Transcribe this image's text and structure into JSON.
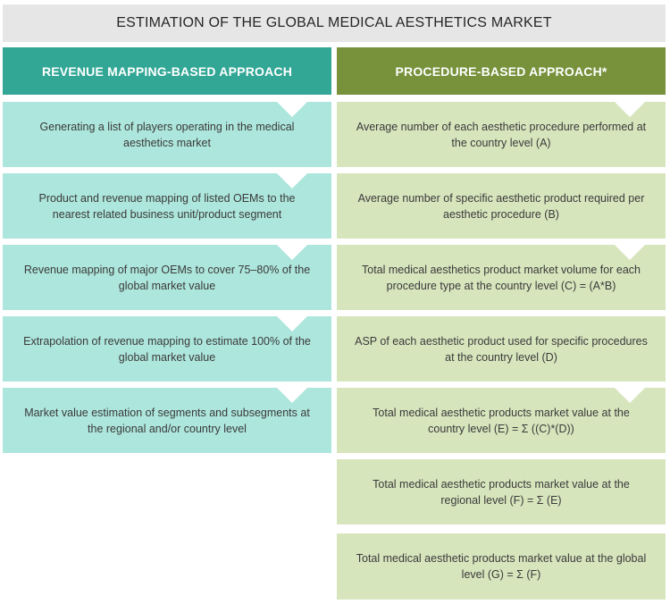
{
  "title": "ESTIMATION OF THE GLOBAL MEDICAL AESTHETICS MARKET",
  "colors": {
    "title_bg": "#e6e6e6",
    "left_header": "#32a796",
    "right_header": "#77923b",
    "left_box": "#ade6dc",
    "right_box": "#d7e5bd"
  },
  "left": {
    "header": "REVENUE MAPPING-BASED APPROACH",
    "steps": [
      "Generating a list of players operating in the medical aesthetics market",
      "Product and revenue mapping of listed OEMs to the nearest related business unit/product segment",
      "Revenue mapping of major OEMs to cover 75–80% of the global market value",
      "Extrapolation of revenue mapping to estimate 100% of the global market value",
      "Market value estimation of segments and subsegments at the regional and/or country level"
    ]
  },
  "right": {
    "header": "PROCEDURE-BASED APPROACH*",
    "steps": [
      "Average number of each aesthetic procedure performed at the country level (A)",
      "Average number of specific aesthetic product required per aesthetic procedure (B)",
      "Total medical aesthetics product market volume for each procedure type at the country level (C) = (A*B)",
      "ASP of each aesthetic product used for specific procedures at the country level (D)",
      "Total medical aesthetic products market value at the country level (E) = Σ ((C)*(D))",
      "Total medical aesthetic products market value at the regional level (F) = Σ (E)",
      "Total medical aesthetic products market value at the global level (G) = Σ (F)"
    ]
  }
}
